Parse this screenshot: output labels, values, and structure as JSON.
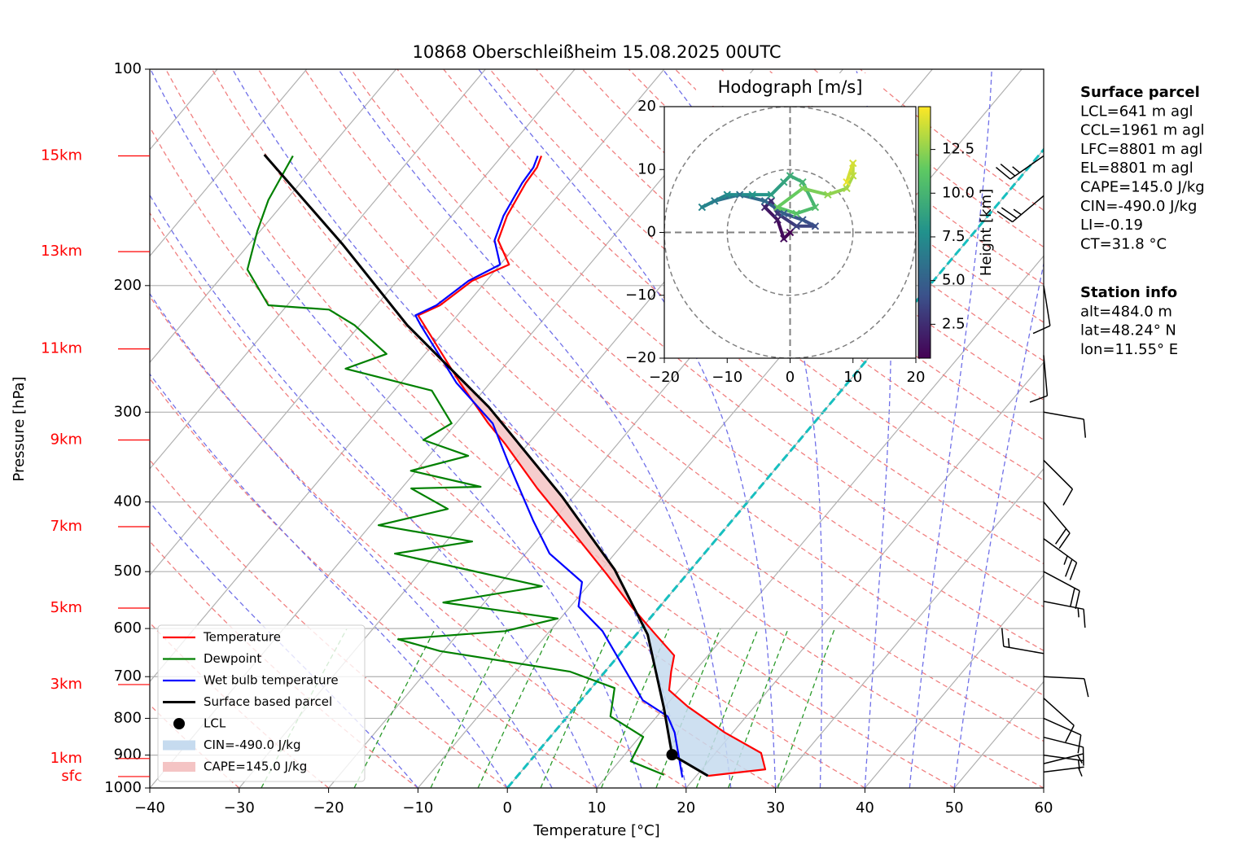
{
  "chart_data": [
    {
      "type": "skewt",
      "title": "10868 Oberschleißheim 15.08.2025 00UTC",
      "x_label": "Temperature [°C]",
      "y_label": "Pressure [hPa]",
      "xlim": [
        -40,
        60
      ],
      "xticks": [
        {
          "value": -40,
          "label": "−40"
        },
        {
          "value": -30,
          "label": "−30"
        },
        {
          "value": -20,
          "label": "−20"
        },
        {
          "value": -10,
          "label": "−10"
        },
        0,
        10,
        20,
        30,
        40,
        50,
        60
      ],
      "ylim": [
        1000,
        100
      ],
      "yticks": [
        100,
        200,
        300,
        400,
        500,
        600,
        700,
        800,
        900,
        1000
      ],
      "log_y": true,
      "grid": true,
      "legend": "lower left",
      "series": [
        {
          "name": "Temperature",
          "color": "#ff0000",
          "pressure": [
            962,
            942,
            894,
            837,
            770,
            731,
            689,
            654,
            612,
            559,
            504,
            436,
            383,
            332,
            311,
            273,
            227,
            220,
            213,
            197,
            187,
            173,
            160,
            144,
            137,
            132
          ],
          "temperature": [
            21.3,
            27.1,
            25.1,
            19.1,
            12.5,
            8.9,
            7.4,
            6.2,
            2.2,
            -3.2,
            -9.0,
            -17.3,
            -24.8,
            -32.6,
            -36.4,
            -43.4,
            -52.8,
            -54.4,
            -52.9,
            -51.6,
            -49.0,
            -52.5,
            -53.8,
            -54.8,
            -55.0,
            -55.6
          ]
        },
        {
          "name": "Dewpoint",
          "color": "#008000",
          "pressure": [
            959,
            918,
            849,
            795,
            726,
            689,
            645,
            621,
            605,
            581,
            552,
            524,
            472,
            454,
            431,
            409,
            383,
            381,
            362,
            345,
            328,
            311,
            280,
            261,
            249,
            227,
            216,
            213,
            190,
            168,
            152,
            132
          ],
          "temperature": [
            16.3,
            11.3,
            10.4,
            4.8,
            2.6,
            -3.9,
            -20.4,
            -26.2,
            -15.0,
            -10.3,
            -24.6,
            -15.1,
            -34.6,
            -27.1,
            -39.1,
            -32.9,
            -38.9,
            -31.3,
            -40.6,
            -35.6,
            -42.1,
            -40.5,
            -45.8,
            -57.5,
            -54.3,
            -60.6,
            -64.9,
            -72.1,
            -77.8,
            -80.3,
            -82.0,
            -83.4
          ]
        },
        {
          "name": "Wet bulb temperature",
          "color": "#0000ff",
          "pressure": [
            967,
            837,
            795,
            755,
            605,
            559,
            517,
            472,
            425,
            354,
            311,
            273,
            227,
            220,
            213,
            197,
            187,
            173,
            160,
            144,
            137,
            132
          ],
          "temperature": [
            18.6,
            13.5,
            11.2,
            6.9,
            -4.1,
            -9.1,
            -11.0,
            -17.3,
            -22.2,
            -30.3,
            -35.9,
            -43.8,
            -53.2,
            -54.7,
            -53.3,
            -52.0,
            -50.0,
            -52.9,
            -54.2,
            -55.2,
            -55.4,
            -56.0
          ]
        },
        {
          "name": "Surface based parcel",
          "color": "#000000",
          "pressure": [
            962,
            899,
            774,
            612,
            497,
            393,
            295,
            227,
            175,
            131.5
          ],
          "temperature": [
            21.3,
            15.3,
            10.0,
            1.3,
            -8.5,
            -21.3,
            -37.9,
            -54.7,
            -69.6,
            -86.7
          ]
        }
      ],
      "lcl": {
        "name": "LCL",
        "pressure": 899,
        "temperature": 15.3,
        "color": "#000000"
      },
      "cin": {
        "label": "CIN=-490.0 J/kg",
        "color": "#c6dbef"
      },
      "cape": {
        "label": "CAPE=145.0 J/kg",
        "color": "#f4c4c4"
      },
      "height_labels": {
        "labels": [
          "15km",
          "13km",
          "11km",
          "9km",
          "7km",
          "5km",
          "3km",
          "1km",
          "sfc"
        ],
        "pressure": [
          132,
          179.4,
          245,
          328,
          433,
          562,
          718,
          910,
          964
        ],
        "color": "#ff0000"
      },
      "wind": {
        "pressure": [
          132,
          150,
          200,
          250,
          300,
          350,
          400,
          450,
          500,
          550,
          650,
          700,
          750,
          800,
          850,
          900,
          925,
          950
        ],
        "direction": [
          235,
          230,
          171,
          175,
          100,
          135,
          140,
          126,
          118,
          101,
          280,
          93,
          132,
          114,
          104,
          98,
          76,
          83
        ],
        "speed": [
          25,
          25,
          10,
          10,
          10,
          10,
          20,
          25,
          20,
          15,
          15,
          10,
          10,
          10,
          10,
          5,
          5,
          5
        ]
      }
    },
    {
      "type": "hodograph",
      "title": "Hodograph [m/s]",
      "xlim": [
        -20,
        20
      ],
      "xticks": [
        {
          "value": -20,
          "label": "−20"
        },
        {
          "value": -10,
          "label": "−10"
        },
        0,
        10,
        20
      ],
      "ylim": [
        -20,
        20
      ],
      "yticks": [
        {
          "value": -20,
          "label": "−20"
        },
        {
          "value": -10,
          "label": "−10"
        },
        0,
        10,
        20
      ],
      "u": [
        0,
        -1,
        -2,
        -4,
        -3,
        -2,
        1,
        4,
        2,
        -1,
        -4,
        -8,
        -12,
        -14,
        -10,
        -6,
        -3,
        -1,
        0,
        2,
        4,
        1,
        -2,
        2,
        6,
        9,
        10,
        10,
        9
      ],
      "v": [
        0,
        -1,
        2,
        4,
        5,
        3,
        1,
        1,
        2,
        3,
        5,
        6,
        5,
        4,
        6,
        6,
        6,
        8,
        9,
        8,
        4,
        3,
        4,
        7,
        6,
        7,
        9,
        11,
        8
      ],
      "height": [
        0.5,
        1,
        1.5,
        2,
        2.5,
        3,
        3.5,
        4,
        4.5,
        5,
        5.5,
        6,
        6.5,
        7,
        7.5,
        8,
        8.5,
        9,
        9.5,
        10,
        10.5,
        11,
        11.5,
        12,
        12.5,
        13,
        13.5,
        14,
        14.5
      ],
      "colormap": "viridis",
      "colorbar": {
        "label": "Height [km]",
        "lim": [
          0.56,
          14.95
        ],
        "ticks": [
          2.5,
          {
            "value": 5,
            "label": "5.0"
          },
          7.5,
          {
            "value": 10,
            "label": "10.0"
          },
          12.5
        ]
      }
    }
  ],
  "info": {
    "surface_parcel": {
      "title": "Surface parcel",
      "lines": [
        "LCL=641 m agl",
        "CCL=1961 m agl",
        "LFC=8801 m agl",
        "EL=8801 m agl",
        "CAPE=145.0 J/kg",
        "CIN=-490.0 J/kg",
        "LI=-0.19",
        "CT=31.8 °C"
      ]
    },
    "station_info": {
      "title": "Station info",
      "lines": [
        "alt=484.0 m",
        "lat=48.24° N",
        "lon=11.55° E"
      ]
    }
  }
}
